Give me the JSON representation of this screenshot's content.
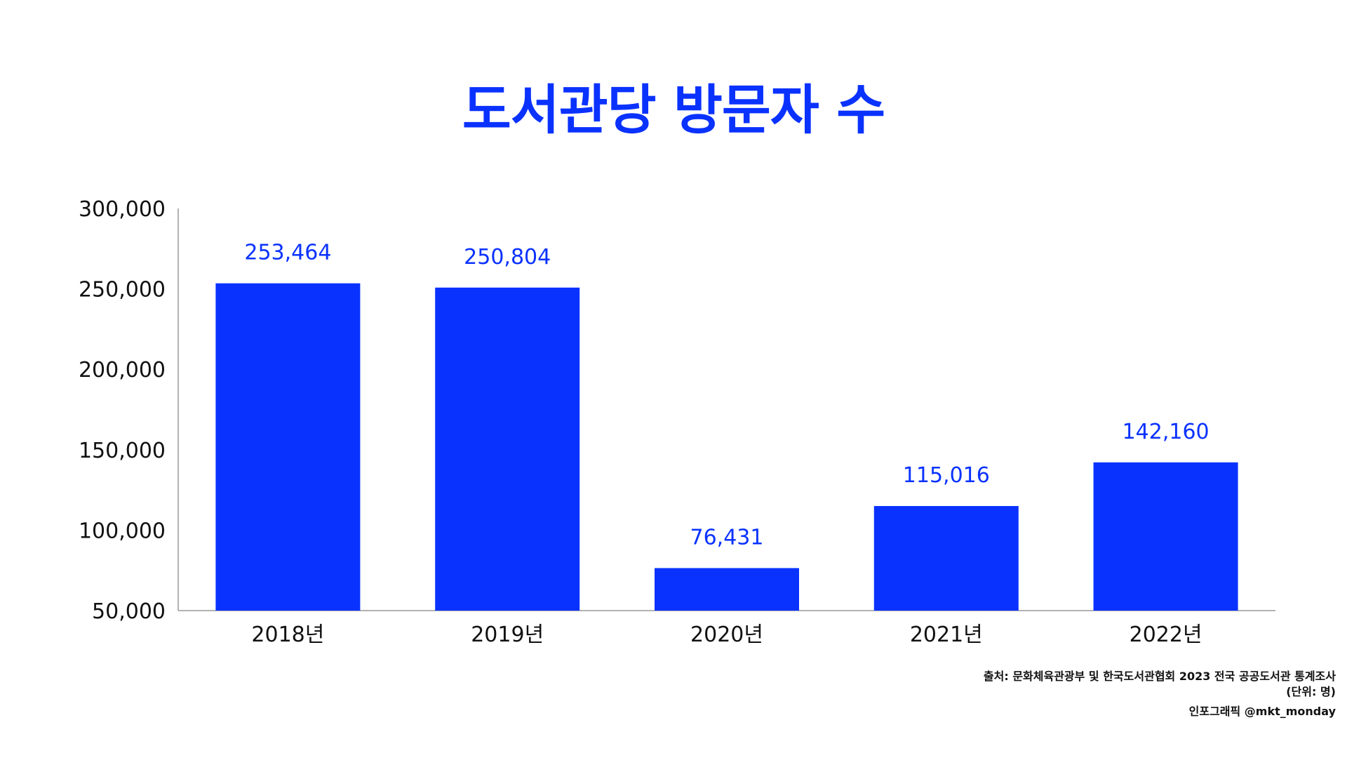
{
  "title": "도서관당 방문자 수",
  "footer": {
    "source": "출처: 문화체육관광부 및 한국도서관협회 2023 전국 공공도서관 통계조사",
    "unit": "(단위: 명)",
    "credit": "인포그래픽 @mkt_monday"
  },
  "colors": {
    "accent": "#0a32ff",
    "axis": "#999999",
    "text": "#111111"
  },
  "chart_data": {
    "type": "bar",
    "title": "도서관당 방문자 수",
    "categories": [
      "2018년",
      "2019년",
      "2020년",
      "2021년",
      "2022년"
    ],
    "values": [
      253464,
      250804,
      76431,
      115016,
      142160
    ],
    "data_labels": [
      "253,464",
      "250,804",
      "76,431",
      "115,016",
      "142,160"
    ],
    "ylim": [
      50000,
      300000
    ],
    "yticks": [
      50000,
      100000,
      150000,
      200000,
      250000,
      300000
    ],
    "ytick_labels": [
      "50,000",
      "100,000",
      "150,000",
      "200,000",
      "250,000",
      "300,000"
    ],
    "xlabel": "",
    "ylabel": "",
    "grid": false,
    "legend": false
  }
}
